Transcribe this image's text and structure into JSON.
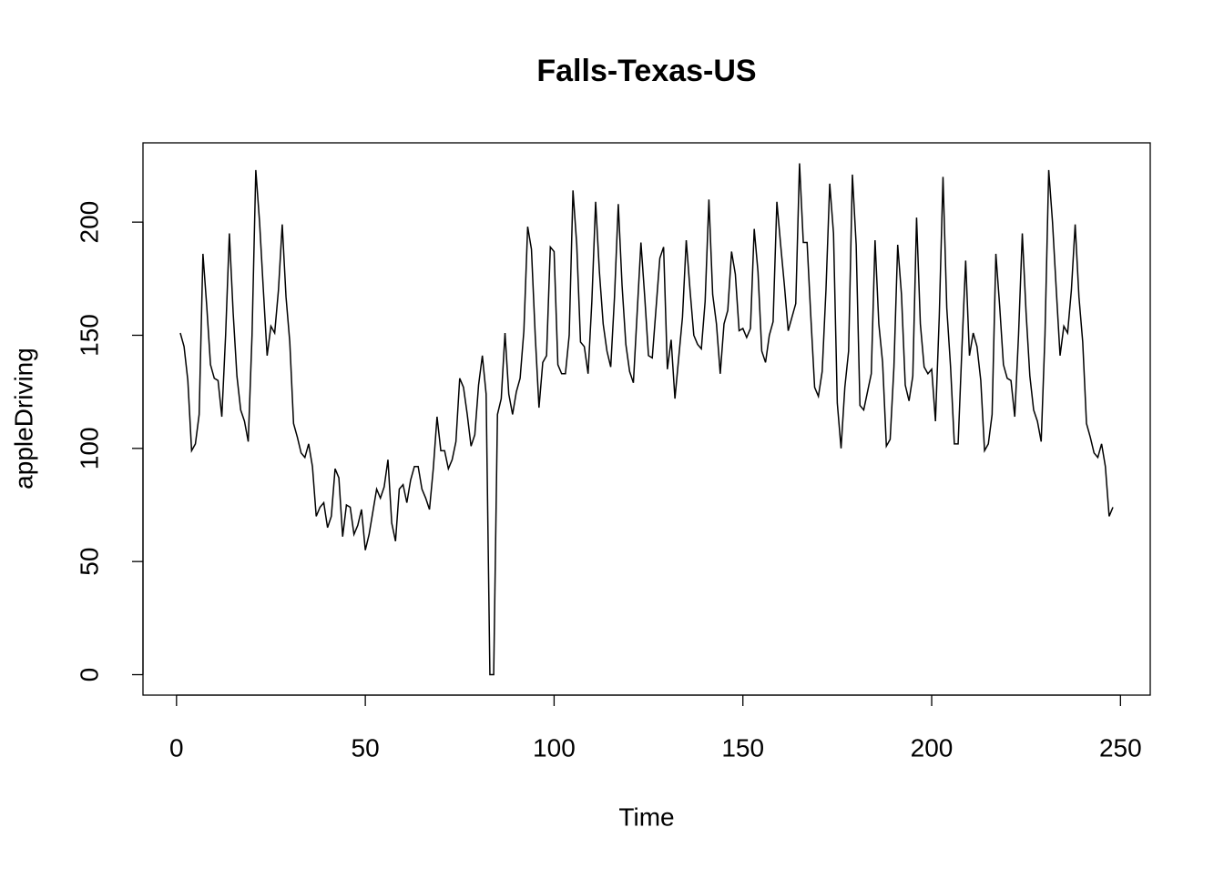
{
  "chart_data": {
    "type": "line",
    "title": "Falls-Texas-US",
    "x_label": "Time",
    "y_label": "appleDriving",
    "color": "#000000",
    "x": [
      1,
      2,
      3,
      4,
      5,
      6,
      7,
      8,
      9,
      10,
      11,
      12,
      13,
      14,
      15,
      16,
      17,
      18,
      19,
      20,
      21,
      22,
      23,
      24,
      25,
      26,
      27,
      28,
      29,
      30,
      31,
      32,
      33,
      34,
      35,
      36,
      37,
      38,
      39,
      40,
      41,
      42,
      43,
      44,
      45,
      46,
      47,
      48,
      49,
      50,
      51,
      52,
      53,
      54,
      55,
      56,
      57,
      58,
      59,
      60,
      61,
      62,
      63,
      64,
      65,
      66,
      67,
      68,
      69,
      70,
      71,
      72,
      73,
      74,
      75,
      76,
      77,
      78,
      79,
      80,
      81,
      82,
      83,
      84,
      85,
      86,
      87,
      88,
      89,
      90,
      91,
      92,
      93,
      94,
      95,
      96,
      97,
      98,
      99,
      100,
      101,
      102,
      103,
      104,
      105,
      106,
      107,
      108,
      109,
      110,
      111,
      112,
      113,
      114,
      115,
      116,
      117,
      118,
      119,
      120,
      121,
      122,
      123,
      124,
      125,
      126,
      127,
      128,
      129,
      130,
      131,
      132,
      133,
      134,
      135,
      136,
      137,
      138,
      139,
      140,
      141,
      142,
      143,
      144,
      145,
      146,
      147,
      148,
      149,
      150,
      151,
      152,
      153,
      154,
      155,
      156,
      157,
      158,
      159,
      160,
      161,
      162,
      163,
      164,
      165,
      166,
      167,
      168,
      169,
      170,
      171,
      172,
      173,
      174,
      175,
      176,
      177,
      178,
      179,
      180,
      181,
      182,
      183,
      184,
      185,
      186,
      187,
      188,
      189,
      190,
      191,
      192,
      193,
      194,
      195,
      196,
      197,
      198,
      199,
      200,
      201,
      202,
      203,
      204,
      205,
      206,
      207,
      208,
      209,
      210,
      211,
      212,
      213,
      214,
      215,
      216,
      217,
      218,
      219,
      220,
      221,
      222,
      223,
      224,
      225,
      226,
      227,
      228,
      229,
      230,
      231,
      232,
      233,
      234,
      235,
      236,
      237,
      238,
      239,
      240,
      241,
      242,
      243,
      244,
      245,
      246,
      247,
      248
    ],
    "values": [
      151,
      145,
      130,
      99,
      102,
      115,
      186,
      163,
      137,
      131,
      130,
      114,
      150,
      195,
      160,
      132,
      117,
      112,
      103,
      150,
      223,
      200,
      170,
      141,
      154,
      151,
      170,
      199,
      167,
      147,
      111,
      105,
      98,
      96,
      102,
      92,
      70,
      74,
      76,
      65,
      70,
      91,
      87,
      61,
      75,
      74,
      62,
      66,
      73,
      55,
      62,
      72,
      82,
      78,
      83,
      95,
      67,
      59,
      82,
      84,
      76,
      86,
      92,
      92,
      82,
      78,
      73,
      91,
      114,
      99,
      99,
      91,
      95,
      103,
      131,
      127,
      115,
      101,
      106,
      128,
      141,
      124,
      0,
      0,
      115,
      122,
      151,
      124,
      115,
      125,
      131,
      152,
      198,
      188,
      150,
      118,
      138,
      141,
      189,
      187,
      137,
      133,
      133,
      150,
      214,
      190,
      147,
      145,
      133,
      165,
      209,
      178,
      155,
      143,
      136,
      167,
      208,
      172,
      146,
      134,
      129,
      160,
      191,
      167,
      141,
      140,
      162,
      184,
      189,
      135,
      148,
      122,
      140,
      158,
      192,
      170,
      150,
      146,
      144,
      165,
      210,
      168,
      155,
      133,
      155,
      161,
      187,
      177,
      152,
      153,
      149,
      153,
      197,
      178,
      143,
      138,
      150,
      156,
      209,
      190,
      172,
      152,
      158,
      164,
      226,
      191,
      191,
      158,
      127,
      123,
      134,
      170,
      217,
      195,
      120,
      100,
      127,
      143,
      221,
      190,
      119,
      117,
      125,
      133,
      192,
      155,
      138,
      101,
      104,
      136,
      190,
      168,
      128,
      121,
      132,
      202,
      155,
      136,
      133,
      135,
      112,
      158,
      220,
      162,
      136,
      102,
      102,
      144,
      183,
      141,
      151,
      145,
      130,
      99,
      102,
      115,
      186,
      163,
      137,
      131,
      130,
      114,
      150,
      195,
      160,
      132,
      117,
      112,
      103,
      150,
      223,
      200,
      170,
      141,
      154,
      151,
      170,
      199,
      167,
      147,
      111,
      105,
      98,
      96,
      102,
      92,
      70,
      74
    ],
    "xlim": [
      -8.88,
      257.88
    ],
    "ylim": [
      -9.04,
      235.04
    ],
    "xticks": [
      0,
      50,
      100,
      150,
      200,
      250
    ],
    "yticks": [
      0,
      50,
      100,
      150,
      200
    ]
  }
}
